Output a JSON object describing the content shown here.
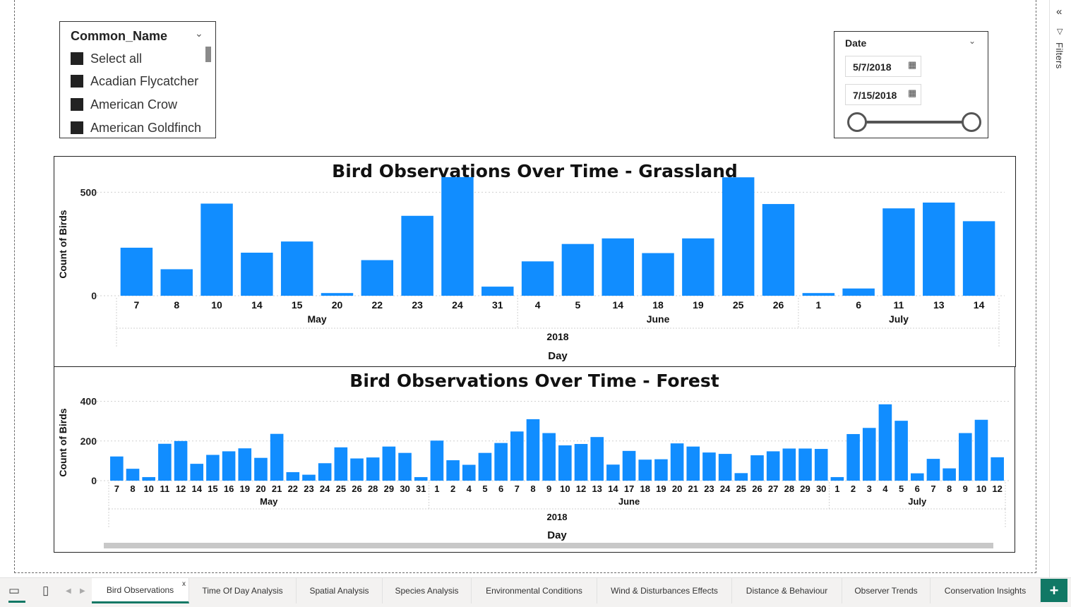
{
  "slicer_name": {
    "header": "Common_Name",
    "items": [
      "Select all",
      "Acadian Flycatcher",
      "American Crow",
      "American Goldfinch"
    ]
  },
  "slicer_date": {
    "header": "Date",
    "start": "5/7/2018",
    "end": "7/15/2018"
  },
  "filters_pane": {
    "label": "Filters"
  },
  "tabs": [
    "Bird Observations",
    "Time Of Day Analysis",
    "Spatial Analysis",
    "Species Analysis",
    "Environmental Conditions",
    "Wind & Disturbances Effects",
    "Distance & Behaviour",
    "Observer Trends",
    "Conservation Insights"
  ],
  "active_tab": "Bird Observations",
  "add_page_label": "+",
  "close_tab_label": "x",
  "colors": {
    "bar": "#118dff",
    "accent": "#117865"
  },
  "chart_data": [
    {
      "type": "bar",
      "title": "Bird Observations Over Time - Grassland",
      "xlabel": "Day",
      "ylabel": "Count of Birds",
      "year": "2018",
      "ylim": [
        0,
        600
      ],
      "yticks": [
        0,
        500
      ],
      "grid": true,
      "categories": [
        {
          "day": "7",
          "month": "May"
        },
        {
          "day": "8",
          "month": "May"
        },
        {
          "day": "10",
          "month": "May"
        },
        {
          "day": "14",
          "month": "May"
        },
        {
          "day": "15",
          "month": "May"
        },
        {
          "day": "20",
          "month": "May"
        },
        {
          "day": "22",
          "month": "May"
        },
        {
          "day": "23",
          "month": "May"
        },
        {
          "day": "24",
          "month": "May"
        },
        {
          "day": "31",
          "month": "May"
        },
        {
          "day": "4",
          "month": "June"
        },
        {
          "day": "5",
          "month": "June"
        },
        {
          "day": "14",
          "month": "June"
        },
        {
          "day": "18",
          "month": "June"
        },
        {
          "day": "19",
          "month": "June"
        },
        {
          "day": "25",
          "month": "June"
        },
        {
          "day": "26",
          "month": "June"
        },
        {
          "day": "1",
          "month": "July"
        },
        {
          "day": "6",
          "month": "July"
        },
        {
          "day": "11",
          "month": "July"
        },
        {
          "day": "13",
          "month": "July"
        },
        {
          "day": "14",
          "month": "July"
        }
      ],
      "values": [
        232,
        128,
        445,
        208,
        262,
        13,
        172,
        386,
        573,
        44,
        166,
        250,
        277,
        206,
        277,
        572,
        443,
        13,
        35,
        422,
        450,
        360
      ]
    },
    {
      "type": "bar",
      "title": "Bird Observations Over Time - Forest",
      "xlabel": "Day",
      "ylabel": "Count of Birds",
      "year": "2018",
      "ylim": [
        0,
        420
      ],
      "yticks": [
        0,
        200,
        400
      ],
      "grid": true,
      "categories": [
        {
          "day": "7",
          "month": "May"
        },
        {
          "day": "8",
          "month": "May"
        },
        {
          "day": "10",
          "month": "May"
        },
        {
          "day": "11",
          "month": "May"
        },
        {
          "day": "12",
          "month": "May"
        },
        {
          "day": "14",
          "month": "May"
        },
        {
          "day": "15",
          "month": "May"
        },
        {
          "day": "16",
          "month": "May"
        },
        {
          "day": "19",
          "month": "May"
        },
        {
          "day": "20",
          "month": "May"
        },
        {
          "day": "21",
          "month": "May"
        },
        {
          "day": "22",
          "month": "May"
        },
        {
          "day": "23",
          "month": "May"
        },
        {
          "day": "24",
          "month": "May"
        },
        {
          "day": "25",
          "month": "May"
        },
        {
          "day": "26",
          "month": "May"
        },
        {
          "day": "28",
          "month": "May"
        },
        {
          "day": "29",
          "month": "May"
        },
        {
          "day": "30",
          "month": "May"
        },
        {
          "day": "31",
          "month": "May"
        },
        {
          "day": "1",
          "month": "June"
        },
        {
          "day": "2",
          "month": "June"
        },
        {
          "day": "4",
          "month": "June"
        },
        {
          "day": "5",
          "month": "June"
        },
        {
          "day": "6",
          "month": "June"
        },
        {
          "day": "7",
          "month": "June"
        },
        {
          "day": "8",
          "month": "June"
        },
        {
          "day": "9",
          "month": "June"
        },
        {
          "day": "10",
          "month": "June"
        },
        {
          "day": "12",
          "month": "June"
        },
        {
          "day": "13",
          "month": "June"
        },
        {
          "day": "14",
          "month": "June"
        },
        {
          "day": "17",
          "month": "June"
        },
        {
          "day": "18",
          "month": "June"
        },
        {
          "day": "19",
          "month": "June"
        },
        {
          "day": "20",
          "month": "June"
        },
        {
          "day": "21",
          "month": "June"
        },
        {
          "day": "23",
          "month": "June"
        },
        {
          "day": "24",
          "month": "June"
        },
        {
          "day": "25",
          "month": "June"
        },
        {
          "day": "26",
          "month": "June"
        },
        {
          "day": "27",
          "month": "June"
        },
        {
          "day": "28",
          "month": "June"
        },
        {
          "day": "29",
          "month": "June"
        },
        {
          "day": "30",
          "month": "June"
        },
        {
          "day": "1",
          "month": "July"
        },
        {
          "day": "2",
          "month": "July"
        },
        {
          "day": "3",
          "month": "July"
        },
        {
          "day": "4",
          "month": "July"
        },
        {
          "day": "5",
          "month": "July"
        },
        {
          "day": "6",
          "month": "July"
        },
        {
          "day": "7",
          "month": "July"
        },
        {
          "day": "8",
          "month": "July"
        },
        {
          "day": "9",
          "month": "July"
        },
        {
          "day": "10",
          "month": "July"
        },
        {
          "day": "12",
          "month": "July"
        }
      ],
      "values": [
        122,
        60,
        18,
        186,
        200,
        85,
        130,
        148,
        163,
        115,
        236,
        43,
        30,
        88,
        168,
        112,
        117,
        172,
        140,
        18,
        202,
        103,
        80,
        140,
        190,
        248,
        310,
        240,
        178,
        185,
        220,
        81,
        150,
        106,
        108,
        188,
        172,
        142,
        135,
        38,
        128,
        148,
        162,
        162,
        160,
        18,
        235,
        266,
        385,
        302,
        37,
        110,
        62,
        240,
        307,
        118
      ]
    }
  ]
}
